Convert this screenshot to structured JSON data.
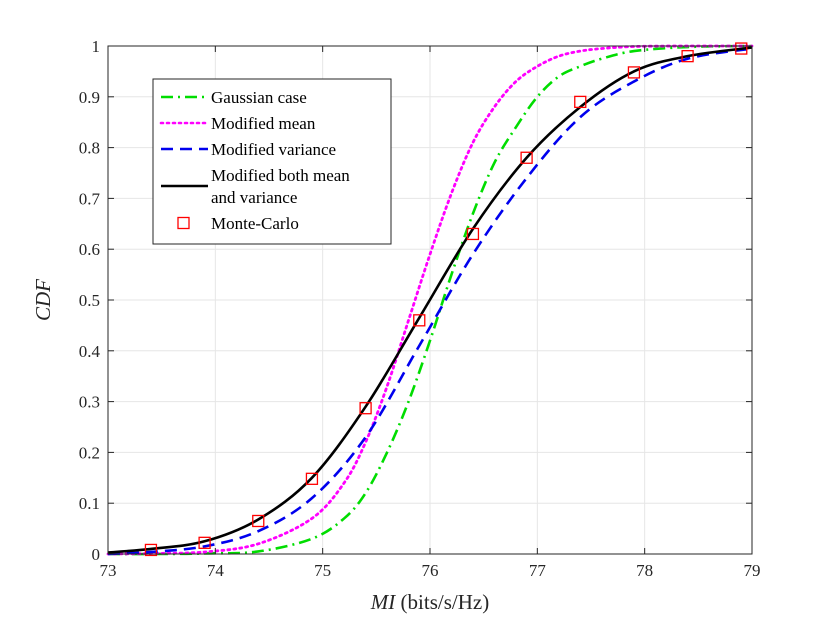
{
  "chart_data": {
    "type": "line",
    "title": "",
    "xlabel_italic": "MI",
    "xlabel_rest": " (bits/s/Hz)",
    "ylabel": "CDF",
    "xlim": [
      73,
      79
    ],
    "ylim": [
      0,
      1
    ],
    "xticks": [
      "73",
      "74",
      "75",
      "76",
      "77",
      "78",
      "79"
    ],
    "yticks": [
      "0",
      "0.1",
      "0.2",
      "0.3",
      "0.4",
      "0.5",
      "0.6",
      "0.7",
      "0.8",
      "0.9",
      "1"
    ],
    "grid": true,
    "legend_position": "top-left",
    "series": [
      {
        "name": "Gaussian case",
        "legend_lines": [
          "Gaussian case"
        ],
        "color": "#00dd00",
        "style": "dash-dot",
        "x": [
          73.0,
          73.4,
          73.9,
          74.4,
          74.9,
          75.2,
          75.4,
          75.6,
          75.8,
          76.0,
          76.2,
          76.4,
          76.6,
          76.8,
          77.0,
          77.2,
          77.4,
          77.6,
          77.9,
          78.4,
          79.0
        ],
        "y": [
          0.0,
          0.0,
          0.001,
          0.005,
          0.03,
          0.07,
          0.12,
          0.2,
          0.3,
          0.42,
          0.55,
          0.67,
          0.77,
          0.84,
          0.9,
          0.94,
          0.96,
          0.975,
          0.99,
          0.998,
          1.0
        ]
      },
      {
        "name": "Modified mean",
        "legend_lines": [
          "Modified mean"
        ],
        "color": "#ff00ff",
        "style": "dotted",
        "x": [
          73.0,
          73.4,
          73.9,
          74.4,
          74.9,
          75.2,
          75.4,
          75.6,
          75.8,
          76.0,
          76.2,
          76.4,
          76.6,
          76.8,
          77.0,
          77.2,
          77.4,
          77.6,
          77.9,
          78.4,
          79.0
        ],
        "y": [
          0.0,
          0.001,
          0.004,
          0.02,
          0.07,
          0.14,
          0.22,
          0.33,
          0.46,
          0.59,
          0.71,
          0.81,
          0.88,
          0.93,
          0.96,
          0.98,
          0.99,
          0.995,
          0.999,
          1.0,
          1.0
        ]
      },
      {
        "name": "Modified variance",
        "legend_lines": [
          "Modified variance"
        ],
        "color": "#0000ee",
        "style": "dashed",
        "x": [
          73.0,
          73.4,
          73.9,
          74.4,
          74.9,
          75.4,
          75.9,
          76.4,
          76.9,
          77.4,
          77.9,
          78.4,
          79.0
        ],
        "y": [
          0.0,
          0.004,
          0.015,
          0.045,
          0.11,
          0.23,
          0.41,
          0.59,
          0.74,
          0.86,
          0.93,
          0.975,
          0.995
        ]
      },
      {
        "name": "Modified both mean and variance",
        "legend_lines": [
          "Modified both mean",
          "and variance"
        ],
        "color": "#000000",
        "style": "solid",
        "x": [
          73.0,
          73.4,
          73.9,
          74.4,
          74.9,
          75.4,
          75.9,
          76.4,
          76.9,
          77.4,
          77.9,
          78.4,
          79.0
        ],
        "y": [
          0.003,
          0.01,
          0.025,
          0.068,
          0.15,
          0.29,
          0.465,
          0.64,
          0.78,
          0.88,
          0.95,
          0.98,
          0.997
        ]
      }
    ],
    "markers": {
      "name": "Monte-Carlo",
      "legend_lines": [
        "Monte-Carlo"
      ],
      "color": "#ff0000",
      "shape": "square",
      "x": [
        73.4,
        73.9,
        74.4,
        74.9,
        75.4,
        75.9,
        76.4,
        76.9,
        77.4,
        77.9,
        78.4,
        78.9
      ],
      "y": [
        0.008,
        0.022,
        0.065,
        0.148,
        0.287,
        0.46,
        0.63,
        0.78,
        0.89,
        0.948,
        0.98,
        0.995
      ]
    }
  }
}
